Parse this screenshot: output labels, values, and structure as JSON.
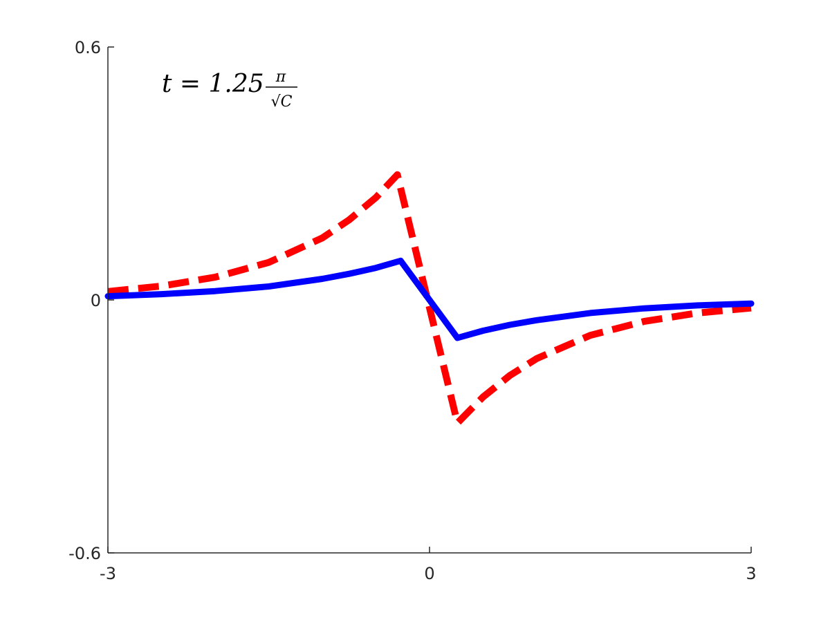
{
  "chart_data": {
    "type": "line",
    "annotation": {
      "prefix": "t = 1.25",
      "numerator": "π",
      "denominator": "√C"
    },
    "xlim": [
      -3,
      3
    ],
    "xticks": [
      -3,
      0,
      3
    ],
    "ylim": [
      -0.6,
      0.6
    ],
    "yticks": [
      -0.6,
      0,
      0.6
    ],
    "series": [
      {
        "color": "#ff0000",
        "dashed": true,
        "x": [
          -3,
          -2.5,
          -2,
          -1.5,
          -1,
          -0.75,
          -0.5,
          -0.3,
          0.26,
          0.5,
          0.75,
          1,
          1.5,
          2,
          2.5,
          3
        ],
        "values": [
          0.02,
          0.033,
          0.054,
          0.089,
          0.147,
          0.19,
          0.243,
          0.297,
          -0.292,
          -0.23,
          -0.179,
          -0.139,
          -0.084,
          -0.051,
          -0.031,
          -0.019
        ]
      },
      {
        "color": "#0000ff",
        "dashed": false,
        "x": [
          -3,
          -2.5,
          -2,
          -1.5,
          -1,
          -0.75,
          -0.5,
          -0.27,
          0.26,
          0.5,
          0.75,
          1,
          1.5,
          2,
          2.5,
          3
        ],
        "values": [
          0.0089,
          0.0137,
          0.021,
          0.032,
          0.05,
          0.062,
          0.076,
          0.093,
          -0.09,
          -0.073,
          -0.059,
          -0.048,
          -0.031,
          -0.02,
          -0.013,
          -0.0085
        ]
      }
    ]
  }
}
